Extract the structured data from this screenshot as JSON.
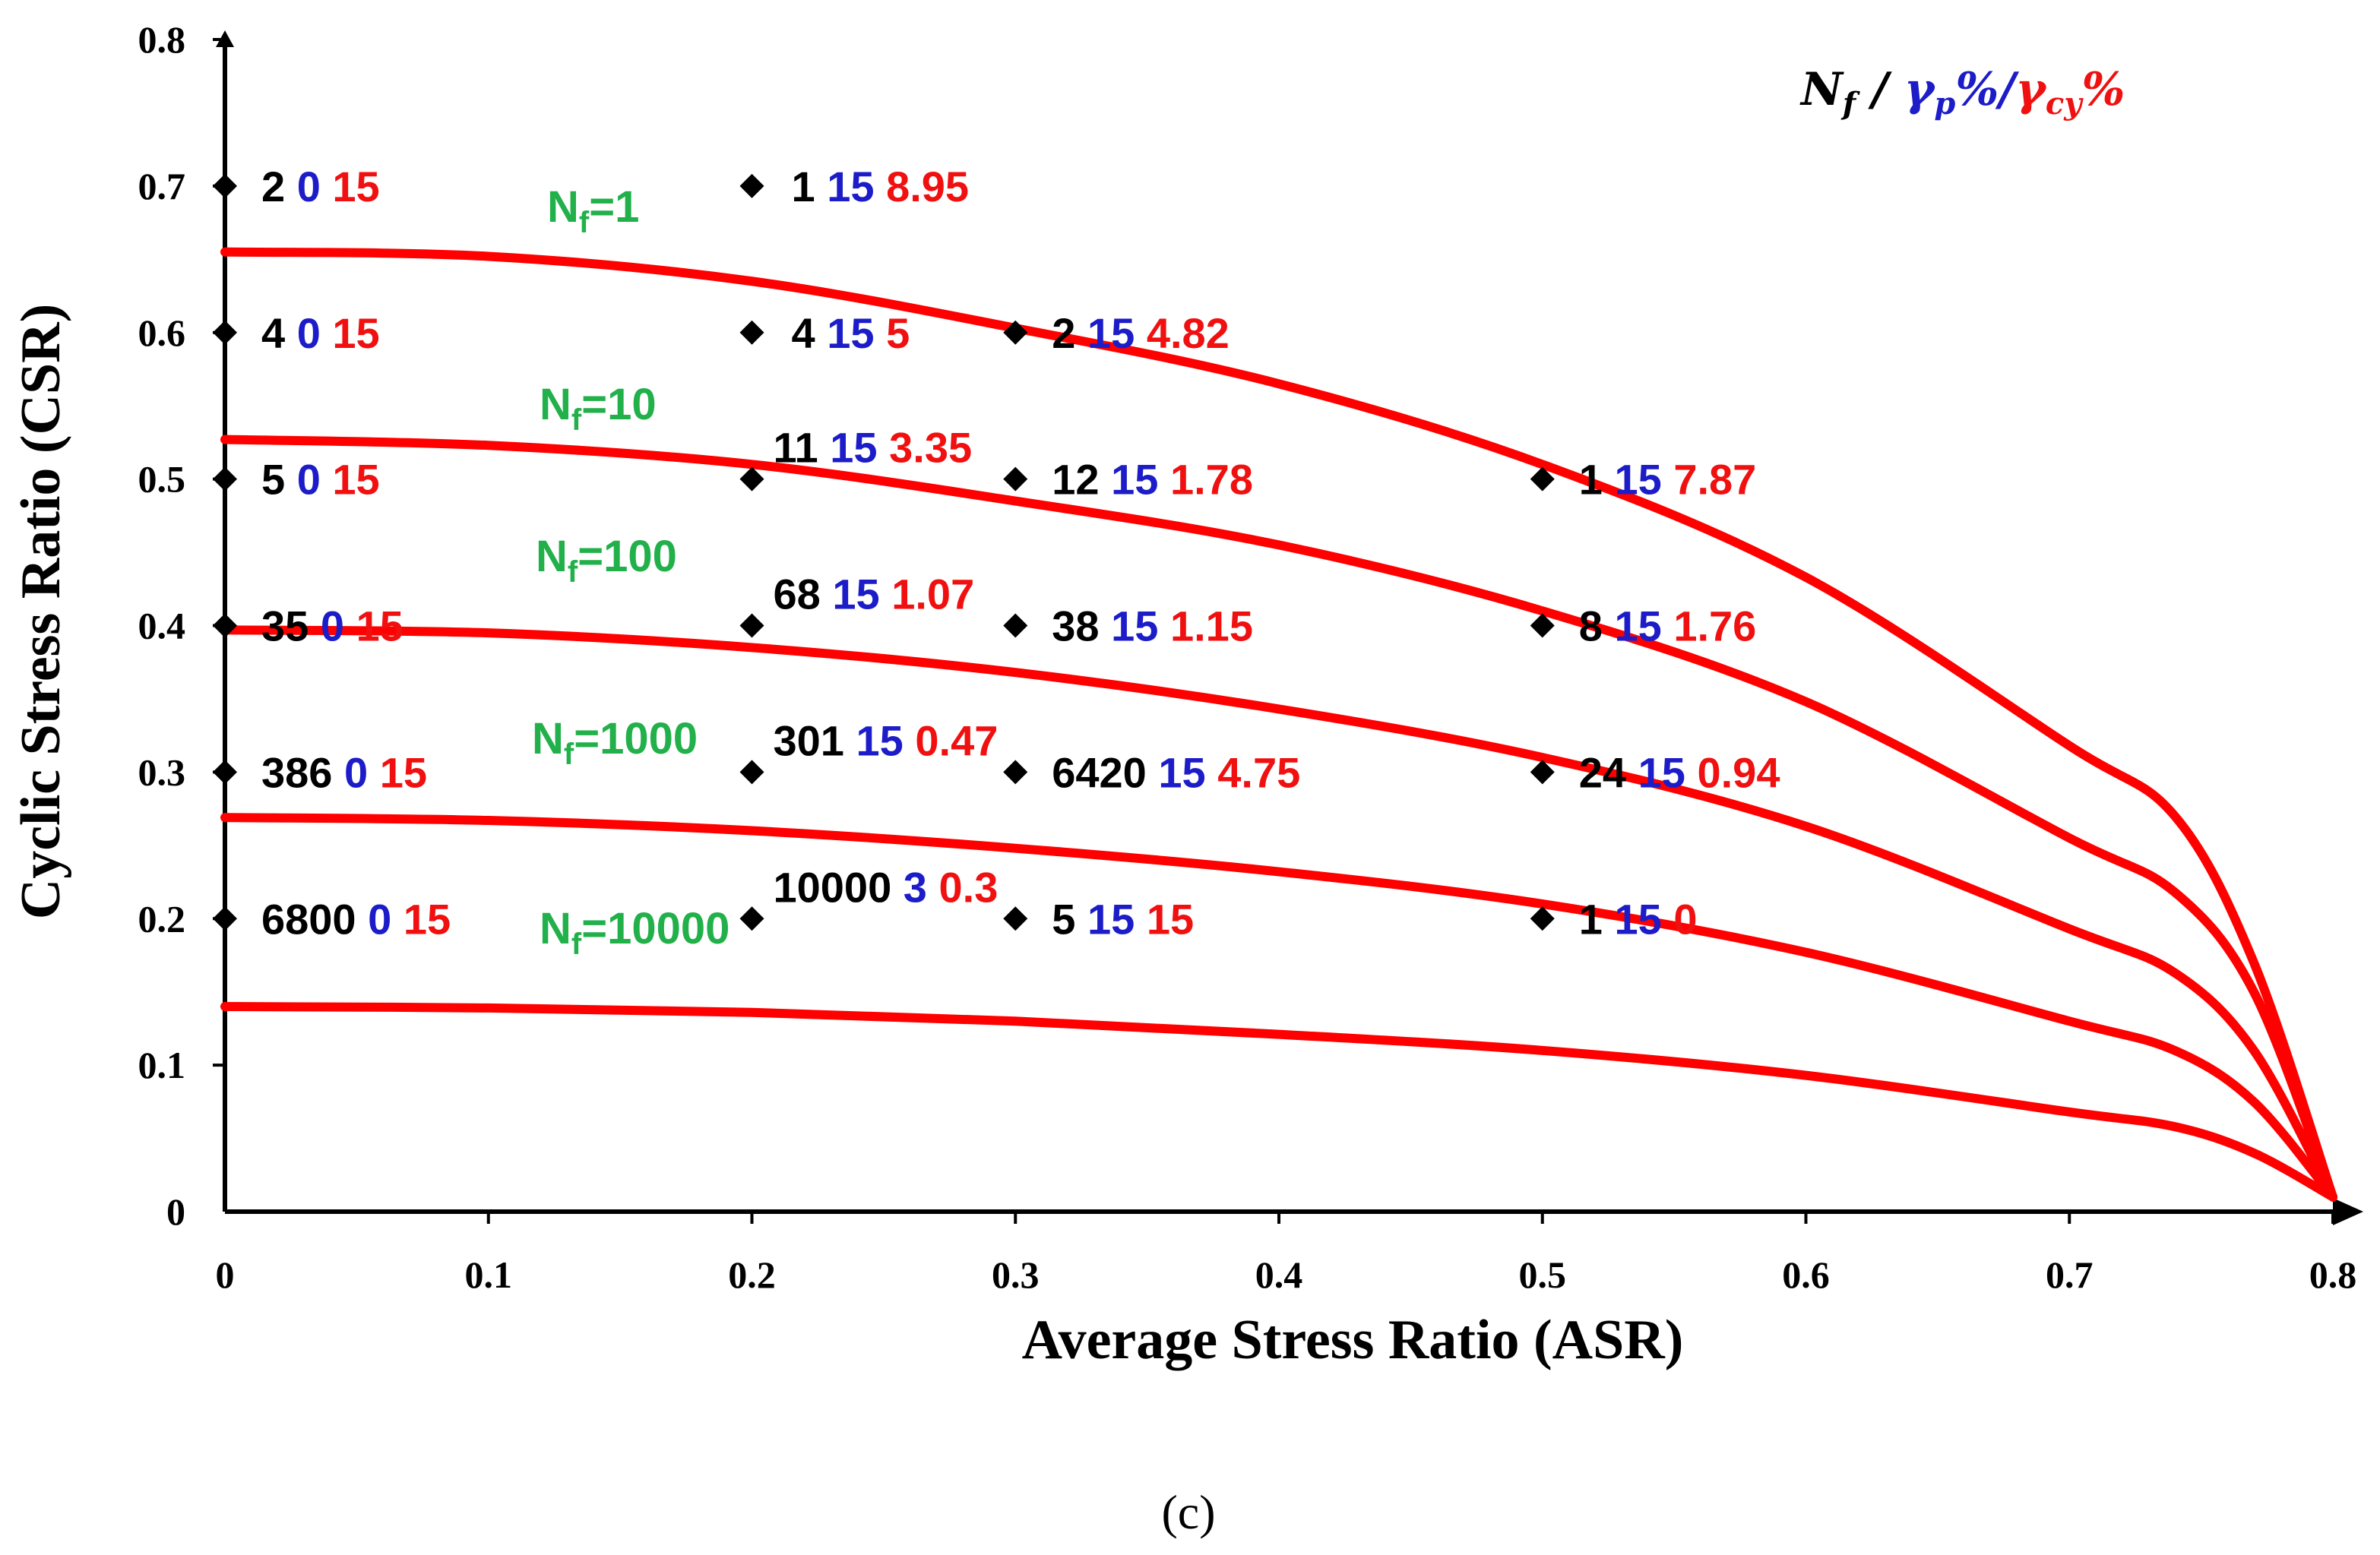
{
  "colors": {
    "nf": "#000000",
    "gp": "#1c1cc8",
    "gcy": "#f01010",
    "curve": "#ff0000",
    "curveLabel": "#22b04a",
    "marker": "#000000"
  },
  "chart_data": {
    "type": "scatter",
    "title": "",
    "xlabel": "Average Stress Ratio (ASR)",
    "ylabel": "Cyclic Stress Ratio (CSR)",
    "xlim": [
      0,
      0.8
    ],
    "ylim": [
      0,
      0.8
    ],
    "xticks": [
      "0",
      "0.1",
      "0.2",
      "0.3",
      "0.4",
      "0.5",
      "0.6",
      "0.7",
      "0.8"
    ],
    "yticks": [
      "0",
      "0.1",
      "0.2",
      "0.3",
      "0.4",
      "0.5",
      "0.6",
      "0.7",
      "0.8"
    ],
    "legend": {
      "nf": "N",
      "nf_sub": "f",
      "sep1": " / ",
      "gp": "γ",
      "gp_sub": "p",
      "gp_pct": "%",
      "sep2": "/",
      "gcy": "γ",
      "gcy_sub": "cy",
      "gcy_pct": "%"
    },
    "points": [
      {
        "x": 0,
        "y": 0.7,
        "nf": "2",
        "gp": "0",
        "gcy": "15"
      },
      {
        "x": 0,
        "y": 0.6,
        "nf": "4",
        "gp": "0",
        "gcy": "15"
      },
      {
        "x": 0,
        "y": 0.5,
        "nf": "5",
        "gp": "0",
        "gcy": "15"
      },
      {
        "x": 0,
        "y": 0.4,
        "nf": "35",
        "gp": "0",
        "gcy": "15"
      },
      {
        "x": 0,
        "y": 0.3,
        "nf": "386",
        "gp": "0",
        "gcy": "15"
      },
      {
        "x": 0,
        "y": 0.2,
        "nf": "6800",
        "gp": "0",
        "gcy": "15"
      },
      {
        "x": 0.2,
        "y": 0.7,
        "nf": "1",
        "gp": "15",
        "gcy": "8.95"
      },
      {
        "x": 0.2,
        "y": 0.6,
        "nf": "4",
        "gp": "15",
        "gcy": "5"
      },
      {
        "x": 0.2,
        "y": 0.5,
        "nf": "11",
        "gp": "15",
        "gcy": "3.35"
      },
      {
        "x": 0.2,
        "y": 0.4,
        "nf": "68",
        "gp": "15",
        "gcy": "1.07"
      },
      {
        "x": 0.2,
        "y": 0.3,
        "nf": "301",
        "gp": "15",
        "gcy": "0.47"
      },
      {
        "x": 0.2,
        "y": 0.2,
        "nf": "10000",
        "gp": "3",
        "gcy": "0.3"
      },
      {
        "x": 0.3,
        "y": 0.6,
        "nf": "2",
        "gp": "15",
        "gcy": "4.82"
      },
      {
        "x": 0.3,
        "y": 0.5,
        "nf": "12",
        "gp": "15",
        "gcy": "1.78"
      },
      {
        "x": 0.3,
        "y": 0.4,
        "nf": "38",
        "gp": "15",
        "gcy": "1.15"
      },
      {
        "x": 0.3,
        "y": 0.3,
        "nf": "6420",
        "gp": "15",
        "gcy": "4.75"
      },
      {
        "x": 0.3,
        "y": 0.2,
        "nf": "5",
        "gp": "15",
        "gcy": "15"
      },
      {
        "x": 0.5,
        "y": 0.5,
        "nf": "1",
        "gp": "15",
        "gcy": "7.87"
      },
      {
        "x": 0.5,
        "y": 0.4,
        "nf": "8",
        "gp": "15",
        "gcy": "1.76"
      },
      {
        "x": 0.5,
        "y": 0.3,
        "nf": "24",
        "gp": "15",
        "gcy": "0.94"
      },
      {
        "x": 0.5,
        "y": 0.2,
        "nf": "1",
        "gp": "15",
        "gcy": "0"
      }
    ],
    "curves": [
      {
        "label_main": "N",
        "label_sub": "f",
        "label_value": "=1",
        "x": [
          0,
          0.1,
          0.2,
          0.3,
          0.4,
          0.5,
          0.6,
          0.7,
          0.74,
          0.77,
          0.8
        ],
        "y": [
          0.655,
          0.652,
          0.635,
          0.603,
          0.565,
          0.51,
          0.433,
          0.318,
          0.27,
          0.17,
          0.01
        ]
      },
      {
        "label_main": "N",
        "label_sub": "f",
        "label_value": "=10",
        "x": [
          0,
          0.1,
          0.2,
          0.3,
          0.4,
          0.5,
          0.6,
          0.7,
          0.74,
          0.77,
          0.8
        ],
        "y": [
          0.527,
          0.523,
          0.51,
          0.485,
          0.455,
          0.41,
          0.348,
          0.255,
          0.218,
          0.15,
          0.01
        ]
      },
      {
        "label_main": "N",
        "label_sub": "f",
        "label_value": "=100",
        "x": [
          0,
          0.1,
          0.2,
          0.3,
          0.4,
          0.5,
          0.6,
          0.7,
          0.74,
          0.77,
          0.8
        ],
        "y": [
          0.397,
          0.395,
          0.385,
          0.368,
          0.343,
          0.31,
          0.263,
          0.193,
          0.163,
          0.11,
          0.01
        ]
      },
      {
        "label_main": "N",
        "label_sub": "f",
        "label_value": "=1000",
        "x": [
          0,
          0.1,
          0.2,
          0.3,
          0.4,
          0.5,
          0.6,
          0.7,
          0.74,
          0.77,
          0.8
        ],
        "y": [
          0.269,
          0.267,
          0.26,
          0.248,
          0.232,
          0.21,
          0.177,
          0.13,
          0.11,
          0.075,
          0.01
        ]
      },
      {
        "label_main": "N",
        "label_sub": "f",
        "label_value": "=10000",
        "x": [
          0,
          0.1,
          0.2,
          0.3,
          0.4,
          0.5,
          0.6,
          0.7,
          0.74,
          0.77,
          0.8
        ],
        "y": [
          0.14,
          0.139,
          0.136,
          0.13,
          0.121,
          0.11,
          0.093,
          0.068,
          0.058,
          0.04,
          0.01
        ]
      }
    ]
  },
  "panel_label": "(c)"
}
